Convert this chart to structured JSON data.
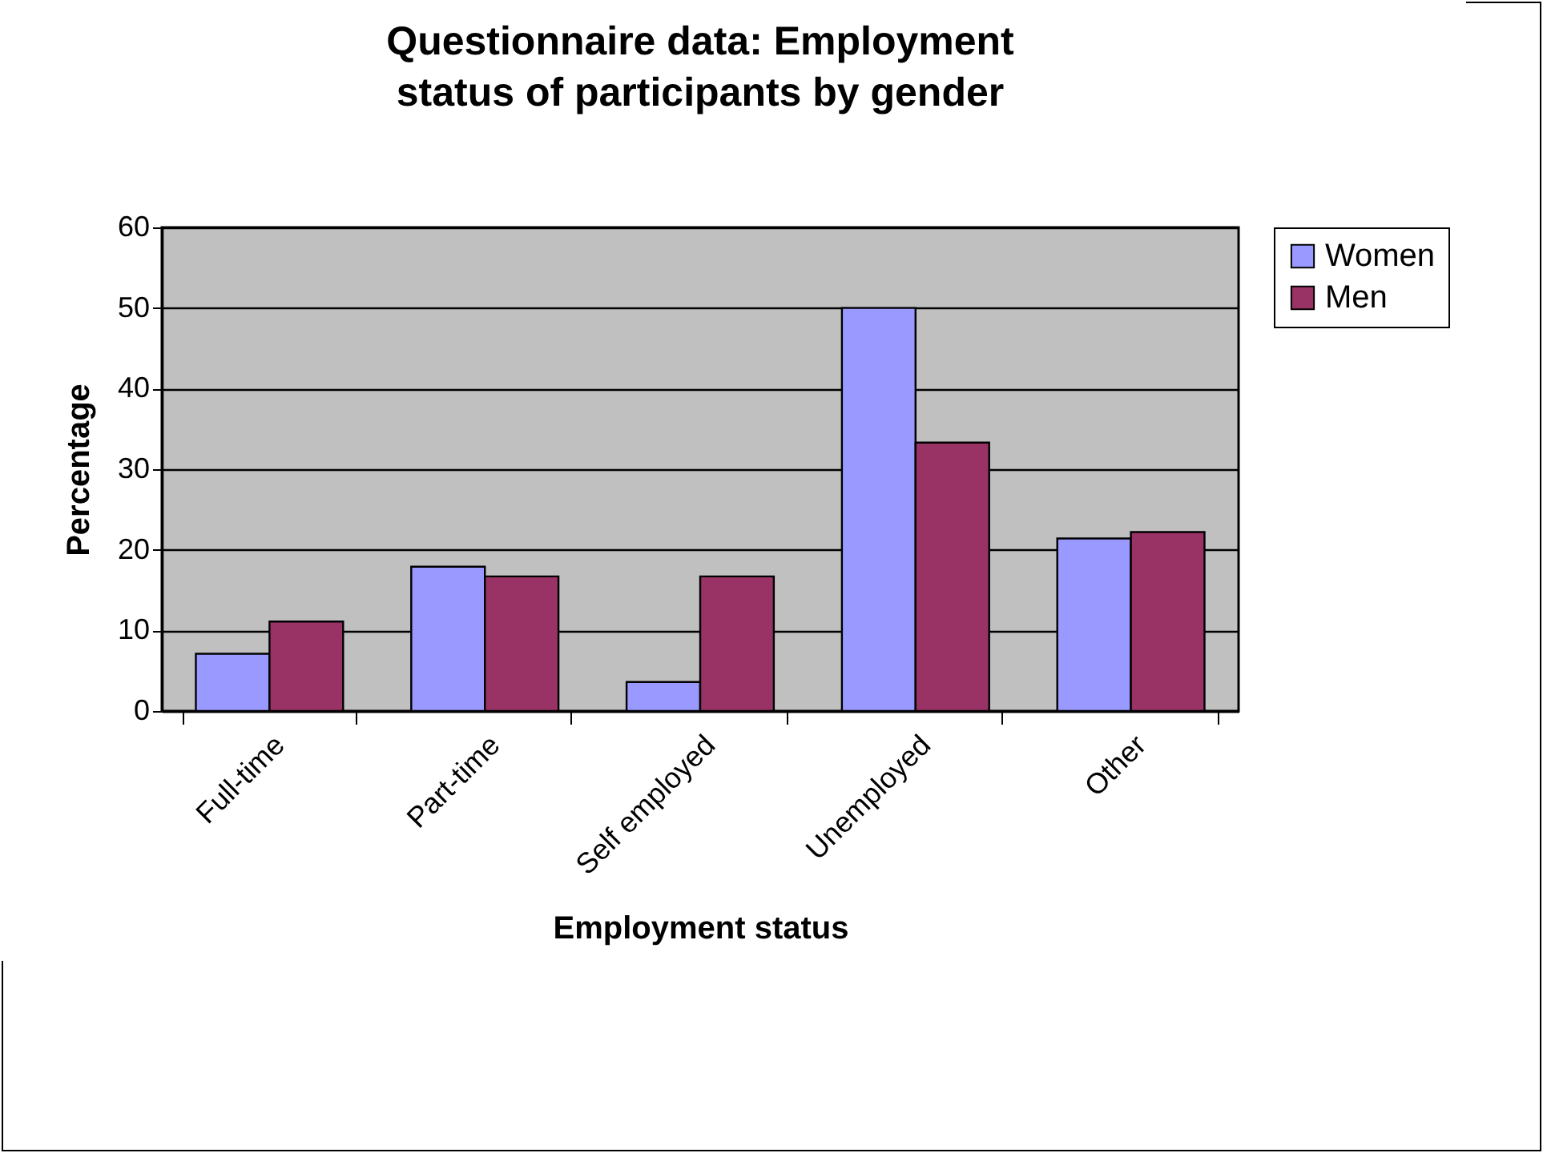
{
  "chart_data": {
    "type": "bar",
    "title": "Questionnaire data: Employment status of participants by gender",
    "xlabel": "Employment status",
    "ylabel": "Percentage",
    "categories": [
      "Full-time",
      "Part-time",
      "Self employed",
      "Unemployed",
      "Other"
    ],
    "series": [
      {
        "name": "Women",
        "color": "#9999ff",
        "values": [
          7.1,
          17.9,
          3.6,
          50,
          21.4
        ]
      },
      {
        "name": "Men",
        "color": "#993366",
        "values": [
          11.1,
          16.7,
          16.7,
          33.3,
          22.2
        ]
      }
    ],
    "ylim": [
      0,
      60
    ],
    "yticks": [
      0,
      10,
      20,
      30,
      40,
      50,
      60
    ],
    "grid": "y",
    "legend": "right"
  }
}
